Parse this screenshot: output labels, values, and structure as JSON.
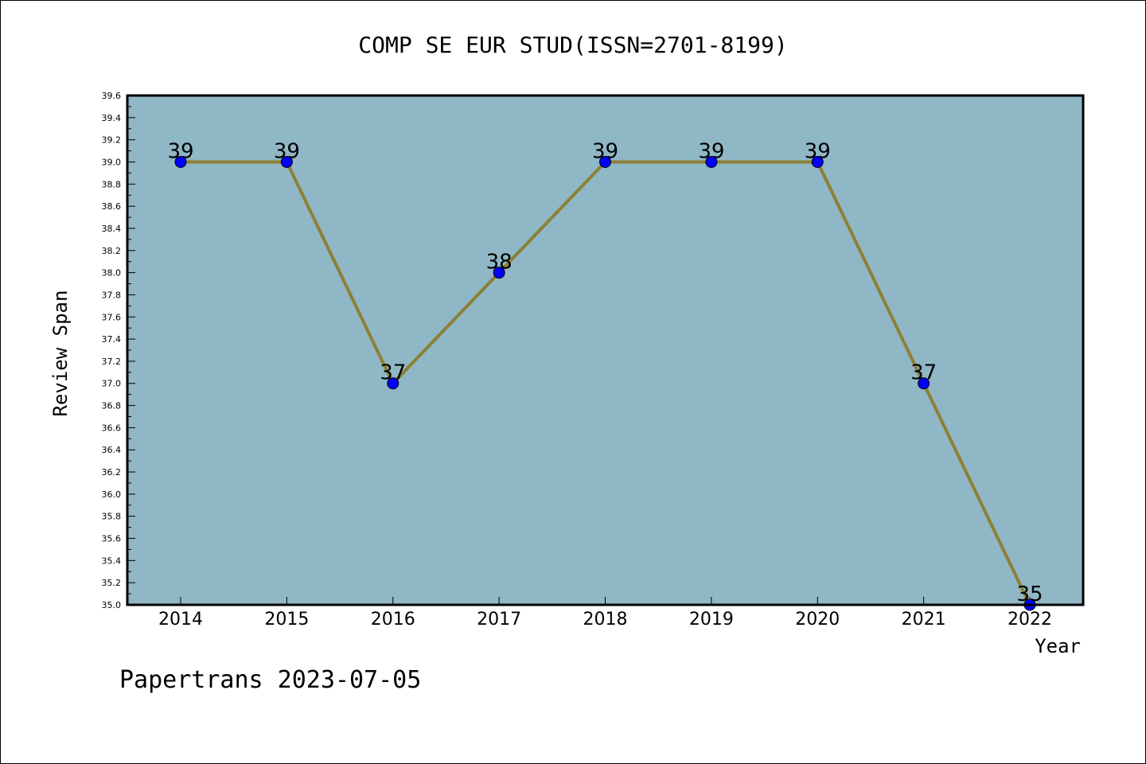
{
  "chart_data": {
    "type": "line",
    "title": "COMP SE EUR STUD(ISSN=2701-8199)",
    "xlabel": "Year",
    "ylabel": "Review Span",
    "x": [
      "2014",
      "2015",
      "2016",
      "2017",
      "2018",
      "2019",
      "2020",
      "2021",
      "2022"
    ],
    "series": [
      {
        "values": [
          39,
          39,
          37,
          38,
          39,
          39,
          39,
          37,
          35
        ],
        "data_labels": [
          "39",
          "39",
          "37",
          "38",
          "39",
          "39",
          "39",
          "37",
          "35"
        ]
      }
    ],
    "ylim": [
      35.0,
      39.6
    ],
    "yticks": [
      "35.0",
      "35.2",
      "35.4",
      "35.6",
      "35.8",
      "36.0",
      "36.2",
      "36.4",
      "36.6",
      "36.8",
      "37.0",
      "37.2",
      "37.4",
      "37.6",
      "37.8",
      "38.0",
      "38.2",
      "38.4",
      "38.6",
      "38.8",
      "39.0",
      "39.2",
      "39.4",
      "39.6"
    ],
    "grid": false,
    "colors": {
      "plot_background": "#8fb7c5",
      "line": "#8c8034",
      "marker": "#0000ff"
    }
  },
  "footer": {
    "text": "Papertrans 2023-07-05"
  }
}
